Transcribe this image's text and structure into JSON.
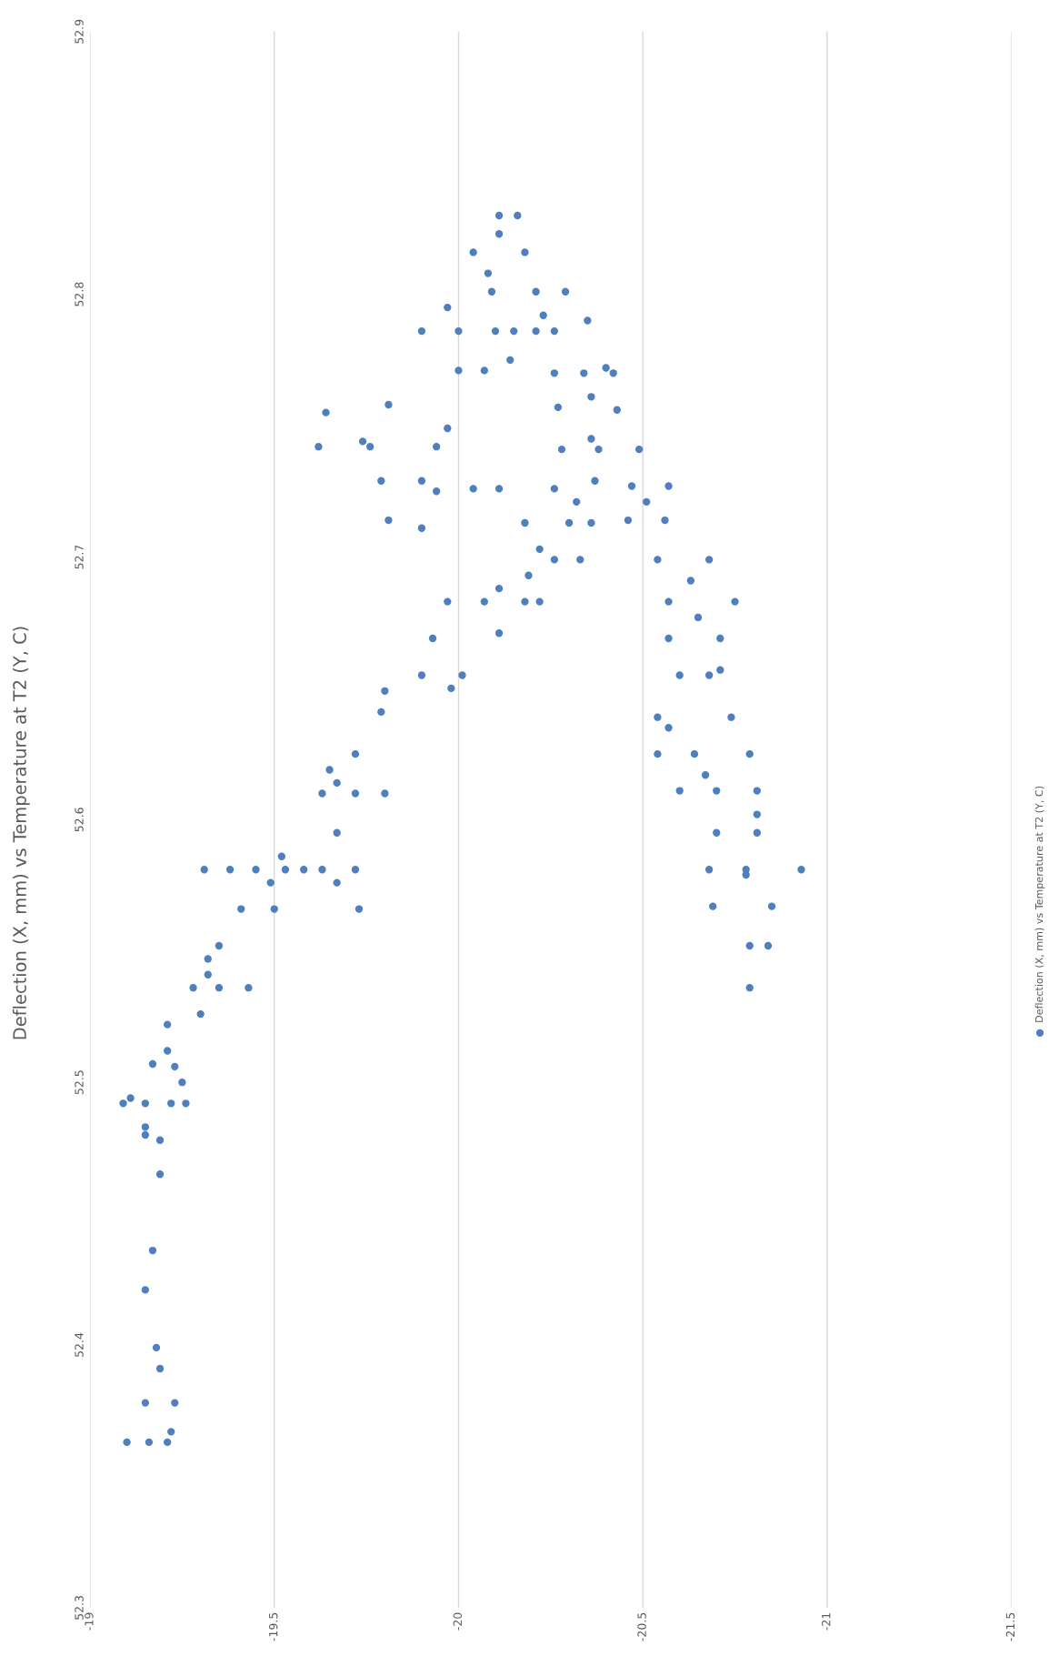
{
  "chart_data": {
    "type": "scatter",
    "title": "Deflection (X, mm) vs Temperature at T2 (Y, C)",
    "xlim": [
      -19,
      -21.5
    ],
    "xticks": [
      -19,
      -19.5,
      -20,
      -20.5,
      -21,
      -21.5
    ],
    "ylim": [
      52.3,
      52.9
    ],
    "yticks": [
      52.3,
      52.4,
      52.5,
      52.6,
      52.7,
      52.8,
      52.9
    ],
    "grid": "x",
    "legend": "right",
    "marker": "circle",
    "series": [
      {
        "name": "Deflection (X, mm) vs Temperature at T2 (Y, C)",
        "color": "#4f7fbd",
        "x": [
          -19.1,
          -19.16,
          -19.21,
          -19.15,
          -19.23,
          -19.22,
          -19.19,
          -19.18,
          -19.15,
          -19.17,
          -19.19,
          -19.19,
          -19.15,
          -19.15,
          -19.09,
          -19.15,
          -19.22,
          -19.26,
          -19.11,
          -19.25,
          -19.23,
          -19.17,
          -19.21,
          -19.21,
          -19.3,
          -19.28,
          -19.35,
          -19.43,
          -19.32,
          -19.32,
          -19.35,
          -19.41,
          -19.5,
          -19.49,
          -19.31,
          -19.38,
          -19.45,
          -19.53,
          -19.58,
          -19.52,
          -19.63,
          -19.72,
          -19.67,
          -19.73,
          -19.67,
          -19.63,
          -19.72,
          -19.8,
          -19.67,
          -19.65,
          -19.72,
          -19.79,
          -19.8,
          -19.9,
          -20.01,
          -19.93,
          -19.98,
          -19.97,
          -20.07,
          -20.18,
          -20.22,
          -20.11,
          -20.11,
          -20.19,
          -20.26,
          -20.33,
          -20.18,
          -20.3,
          -20.36,
          -20.22,
          -19.62,
          -19.76,
          -19.64,
          -19.74,
          -19.94,
          -19.81,
          -19.79,
          -19.9,
          -19.81,
          -19.9,
          -19.94,
          -20.04,
          -20.11,
          -19.97,
          -19.9,
          -20.0,
          -20.1,
          -20.15,
          -19.97,
          -20.0,
          -20.07,
          -20.09,
          -20.21,
          -20.04,
          -20.18,
          -20.11,
          -20.16,
          -20.11,
          -20.08,
          -20.14,
          -20.21,
          -20.26,
          -20.29,
          -20.23,
          -20.27,
          -20.26,
          -20.34,
          -20.42,
          -20.4,
          -20.35,
          -20.36,
          -20.43,
          -20.28,
          -20.38,
          -20.49,
          -20.36,
          -20.37,
          -20.26,
          -20.32,
          -20.46,
          -20.56,
          -20.47,
          -20.57,
          -20.51,
          -20.54,
          -20.68,
          -20.57,
          -20.75,
          -20.57,
          -20.71,
          -20.63,
          -20.65,
          -20.6,
          -20.68,
          -20.71,
          -20.54,
          -20.74,
          -20.57,
          -20.54,
          -20.64,
          -20.79,
          -20.6,
          -20.7,
          -20.81,
          -20.67,
          -20.81,
          -20.7,
          -20.81,
          -20.68,
          -20.78,
          -20.93,
          -20.78,
          -20.69,
          -20.85,
          -20.79,
          -20.79,
          -20.84
        ],
        "values": [
          52.363,
          52.363,
          52.363,
          52.378,
          52.378,
          52.367,
          52.391,
          52.399,
          52.421,
          52.436,
          52.465,
          52.478,
          52.48,
          52.483,
          52.492,
          52.492,
          52.492,
          52.492,
          52.494,
          52.5,
          52.506,
          52.507,
          52.512,
          52.522,
          52.526,
          52.536,
          52.536,
          52.536,
          52.541,
          52.547,
          52.552,
          52.566,
          52.566,
          52.576,
          52.581,
          52.581,
          52.581,
          52.581,
          52.581,
          52.586,
          52.581,
          52.581,
          52.576,
          52.566,
          52.595,
          52.61,
          52.61,
          52.61,
          52.614,
          52.619,
          52.625,
          52.641,
          52.649,
          52.655,
          52.655,
          52.669,
          52.65,
          52.683,
          52.683,
          52.683,
          52.683,
          52.671,
          52.688,
          52.693,
          52.699,
          52.699,
          52.713,
          52.713,
          52.713,
          52.703,
          52.742,
          52.742,
          52.755,
          52.744,
          52.742,
          52.758,
          52.729,
          52.729,
          52.714,
          52.711,
          52.725,
          52.726,
          52.726,
          52.749,
          52.786,
          52.786,
          52.786,
          52.786,
          52.795,
          52.771,
          52.771,
          52.801,
          52.801,
          52.816,
          52.816,
          52.83,
          52.83,
          52.823,
          52.808,
          52.775,
          52.786,
          52.786,
          52.801,
          52.792,
          52.757,
          52.77,
          52.77,
          52.77,
          52.772,
          52.79,
          52.761,
          52.756,
          52.741,
          52.741,
          52.741,
          52.745,
          52.729,
          52.726,
          52.721,
          52.714,
          52.714,
          52.727,
          52.727,
          52.721,
          52.699,
          52.699,
          52.683,
          52.683,
          52.669,
          52.669,
          52.691,
          52.677,
          52.655,
          52.655,
          52.657,
          52.639,
          52.639,
          52.635,
          52.625,
          52.625,
          52.625,
          52.611,
          52.611,
          52.611,
          52.617,
          52.602,
          52.595,
          52.595,
          52.581,
          52.581,
          52.581,
          52.579,
          52.567,
          52.567,
          52.552,
          52.536,
          52.552
        ]
      }
    ]
  }
}
